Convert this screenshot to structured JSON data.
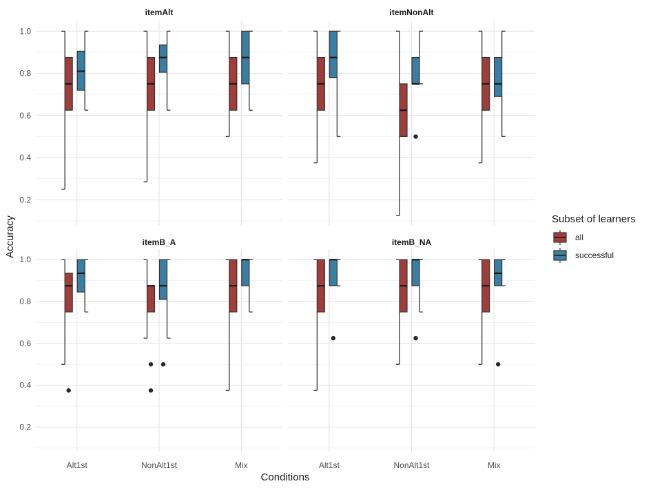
{
  "chart_data": {
    "type": "boxplot",
    "xlabel": "Conditions",
    "ylabel": "Accuracy",
    "categories": [
      "Alt1st",
      "NonAlt1st",
      "Mix"
    ],
    "ylim": [
      0.08,
      1.05
    ],
    "yticks": [
      0.2,
      0.4,
      0.6,
      0.8,
      1.0
    ],
    "ytick_labels": [
      "0.2",
      "0.4",
      "0.6",
      "0.8",
      "1.0"
    ],
    "grid": true,
    "legend": {
      "title": "Subset of learners",
      "position": "right",
      "entries": [
        {
          "name": "all",
          "color": "#9e3d3a"
        },
        {
          "name": "successful",
          "color": "#3a7ea3"
        }
      ]
    },
    "panels": [
      {
        "title": "itemAlt",
        "boxes": [
          [
            {
              "lw": 0.25,
              "q1": 0.625,
              "med": 0.75,
              "q3": 0.875,
              "uw": 1.0,
              "out": []
            },
            {
              "lw": 0.625,
              "q1": 0.72,
              "med": 0.81,
              "q3": 0.905,
              "uw": 1.0,
              "out": []
            }
          ],
          [
            {
              "lw": 0.285,
              "q1": 0.625,
              "med": 0.75,
              "q3": 0.875,
              "uw": 1.0,
              "out": []
            },
            {
              "lw": 0.625,
              "q1": 0.805,
              "med": 0.875,
              "q3": 0.935,
              "uw": 1.0,
              "out": []
            }
          ],
          [
            {
              "lw": 0.5,
              "q1": 0.625,
              "med": 0.75,
              "q3": 0.875,
              "uw": 1.0,
              "out": []
            },
            {
              "lw": 0.625,
              "q1": 0.75,
              "med": 0.875,
              "q3": 1.0,
              "uw": 1.0,
              "out": []
            }
          ]
        ]
      },
      {
        "title": "itemNonAlt",
        "boxes": [
          [
            {
              "lw": 0.375,
              "q1": 0.625,
              "med": 0.75,
              "q3": 0.875,
              "uw": 1.0,
              "out": []
            },
            {
              "lw": 0.5,
              "q1": 0.78,
              "med": 0.875,
              "q3": 1.0,
              "uw": 1.0,
              "out": []
            }
          ],
          [
            {
              "lw": 0.125,
              "q1": 0.5,
              "med": 0.625,
              "q3": 0.75,
              "uw": 1.0,
              "out": []
            },
            {
              "lw": 0.75,
              "q1": 0.75,
              "med": 0.75,
              "q3": 0.875,
              "uw": 1.0,
              "out": [
                0.5
              ]
            }
          ],
          [
            {
              "lw": 0.375,
              "q1": 0.625,
              "med": 0.75,
              "q3": 0.875,
              "uw": 1.0,
              "out": []
            },
            {
              "lw": 0.5,
              "q1": 0.69,
              "med": 0.75,
              "q3": 0.875,
              "uw": 1.0,
              "out": []
            }
          ]
        ]
      },
      {
        "title": "itemB_A",
        "boxes": [
          [
            {
              "lw": 0.5,
              "q1": 0.75,
              "med": 0.875,
              "q3": 0.935,
              "uw": 1.0,
              "out": [
                0.375
              ]
            },
            {
              "lw": 0.75,
              "q1": 0.845,
              "med": 0.935,
              "q3": 1.0,
              "uw": 1.0,
              "out": []
            }
          ],
          [
            {
              "lw": 0.625,
              "q1": 0.75,
              "med": 0.875,
              "q3": 0.875,
              "uw": 1.0,
              "out": [
                0.5,
                0.375
              ]
            },
            {
              "lw": 0.625,
              "q1": 0.81,
              "med": 0.875,
              "q3": 1.0,
              "uw": 1.0,
              "out": [
                0.5
              ]
            }
          ],
          [
            {
              "lw": 0.375,
              "q1": 0.75,
              "med": 0.875,
              "q3": 1.0,
              "uw": 1.0,
              "out": []
            },
            {
              "lw": 0.75,
              "q1": 0.875,
              "med": 1.0,
              "q3": 1.0,
              "uw": 1.0,
              "out": []
            }
          ]
        ]
      },
      {
        "title": "itemB_NA",
        "boxes": [
          [
            {
              "lw": 0.375,
              "q1": 0.75,
              "med": 0.875,
              "q3": 1.0,
              "uw": 1.0,
              "out": []
            },
            {
              "lw": 0.875,
              "q1": 0.875,
              "med": 1.0,
              "q3": 1.0,
              "uw": 1.0,
              "out": [
                0.625
              ]
            }
          ],
          [
            {
              "lw": 0.5,
              "q1": 0.75,
              "med": 0.875,
              "q3": 1.0,
              "uw": 1.0,
              "out": []
            },
            {
              "lw": 0.75,
              "q1": 0.875,
              "med": 1.0,
              "q3": 1.0,
              "uw": 1.0,
              "out": [
                0.625
              ]
            }
          ],
          [
            {
              "lw": 0.5,
              "q1": 0.75,
              "med": 0.875,
              "q3": 1.0,
              "uw": 1.0,
              "out": []
            },
            {
              "lw": 0.875,
              "q1": 0.875,
              "med": 0.935,
              "q3": 1.0,
              "uw": 1.0,
              "out": [
                0.5
              ]
            }
          ]
        ]
      }
    ]
  }
}
